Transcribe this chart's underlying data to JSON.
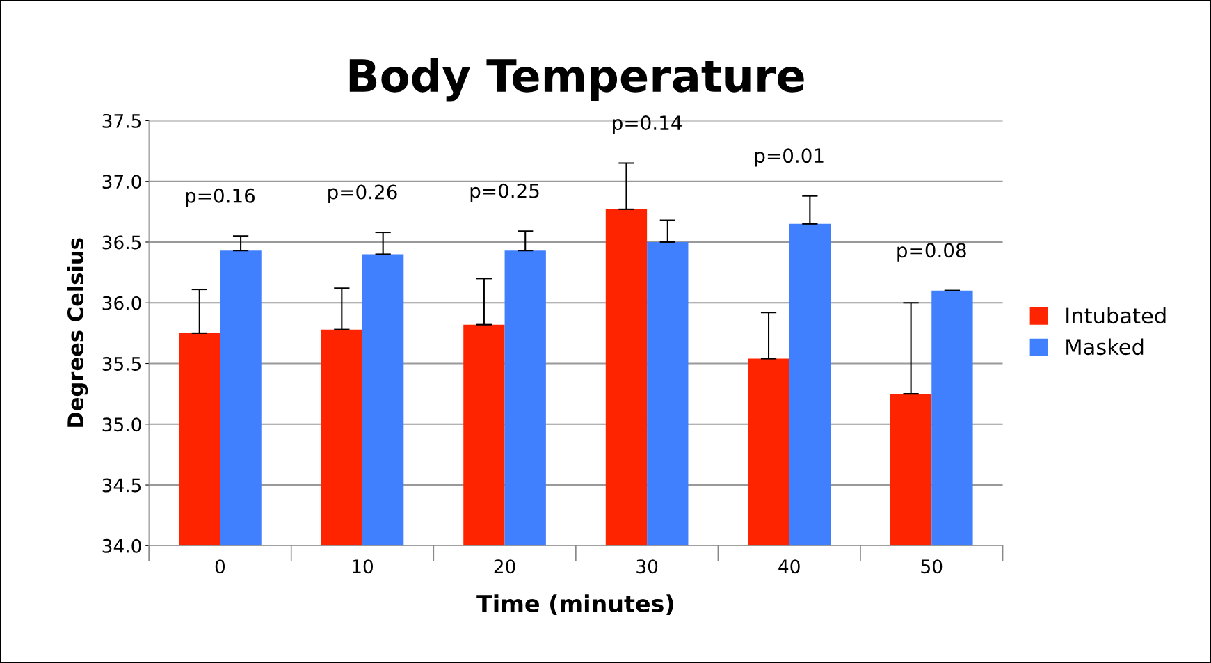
{
  "chart_data": {
    "type": "bar",
    "title": "Body Temperature",
    "xlabel": "Time (minutes)",
    "ylabel": "Degrees Celsius",
    "categories": [
      "0",
      "10",
      "20",
      "30",
      "40",
      "50"
    ],
    "series": [
      {
        "name": "Intubated",
        "color": "#ff2400",
        "values": [
          35.75,
          35.78,
          35.82,
          36.77,
          35.54,
          35.25
        ],
        "errors": [
          0.36,
          0.34,
          0.38,
          0.38,
          0.38,
          0.75
        ]
      },
      {
        "name": "Masked",
        "color": "#4080ff",
        "values": [
          36.43,
          36.4,
          36.43,
          36.5,
          36.65,
          36.1
        ],
        "errors": [
          0.12,
          0.18,
          0.16,
          0.18,
          0.23,
          0.0
        ]
      }
    ],
    "ylim": [
      34.0,
      37.5
    ],
    "yticks": [
      {
        "value": 34.0,
        "label": "34.0"
      },
      {
        "value": 34.5,
        "label": "34.5"
      },
      {
        "value": 35.0,
        "label": "35.0"
      },
      {
        "value": 35.5,
        "label": "35.5"
      },
      {
        "value": 36.0,
        "label": "36.0"
      },
      {
        "value": 36.5,
        "label": "36.5"
      },
      {
        "value": 37.0,
        "label": "37.0"
      },
      {
        "value": 37.5,
        "label": "37.5"
      }
    ],
    "grid": "y",
    "legend": "right",
    "annotations": [
      "p=0.16",
      "p=0.26",
      "p=0.25",
      "p=0.14",
      "p=0.01",
      "p=0.08"
    ]
  }
}
